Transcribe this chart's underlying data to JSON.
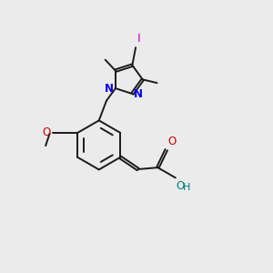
{
  "bg_color": "#ebebeb",
  "bond_color": "#1a1a1a",
  "N_color": "#0000ee",
  "O_color": "#cc0000",
  "I_color": "#cc00cc",
  "OH_color": "#008080",
  "lw": 1.4,
  "dbo": 0.035,
  "xlim": [
    0,
    7.5
  ],
  "ylim": [
    0,
    8.0
  ]
}
